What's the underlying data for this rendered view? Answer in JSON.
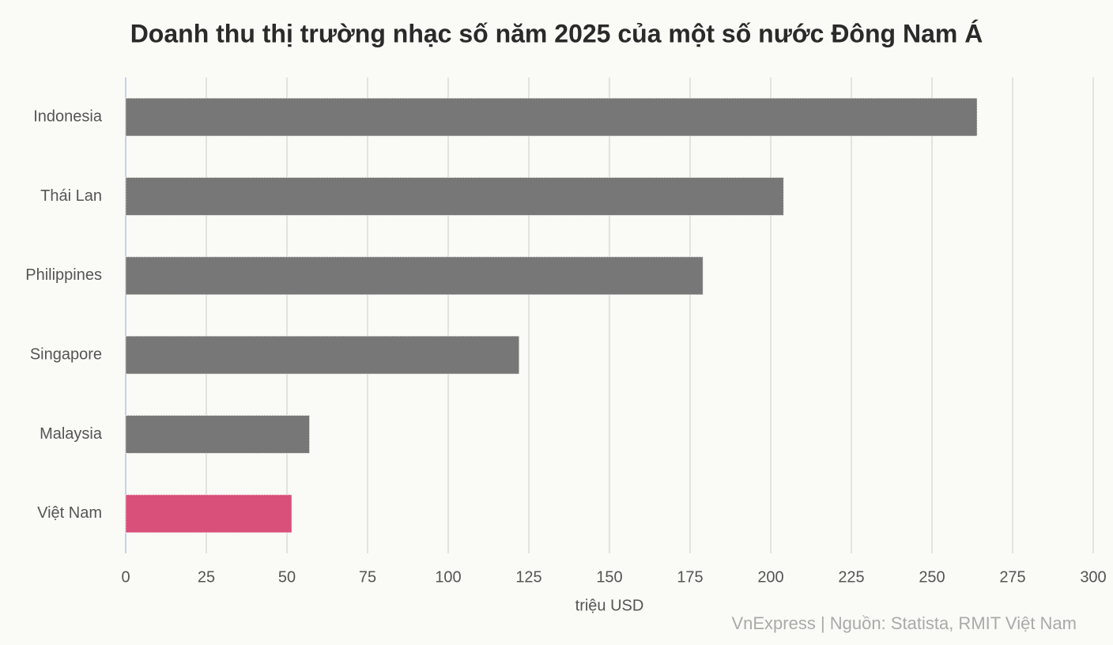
{
  "chart_data": {
    "type": "bar",
    "orientation": "horizontal",
    "title": "Doanh thu thị trường nhạc số năm 2025 của một số nước Đông Nam Á",
    "categories": [
      "Indonesia",
      "Thái Lan",
      "Philippines",
      "Singapore",
      "Malaysia",
      "Việt Nam"
    ],
    "values": [
      264,
      204,
      179,
      122,
      57,
      51.5
    ],
    "colors": [
      "#777777",
      "#777777",
      "#777777",
      "#777777",
      "#777777",
      "#d9507a"
    ],
    "xlabel": "triệu USD",
    "source": "VnExpress | Nguồn: Statista, RMIT Việt Nam",
    "xlim": [
      0,
      300
    ],
    "xticks": [
      0,
      25,
      50,
      75,
      100,
      125,
      150,
      175,
      200,
      225,
      250,
      275,
      300
    ],
    "grid": true
  }
}
